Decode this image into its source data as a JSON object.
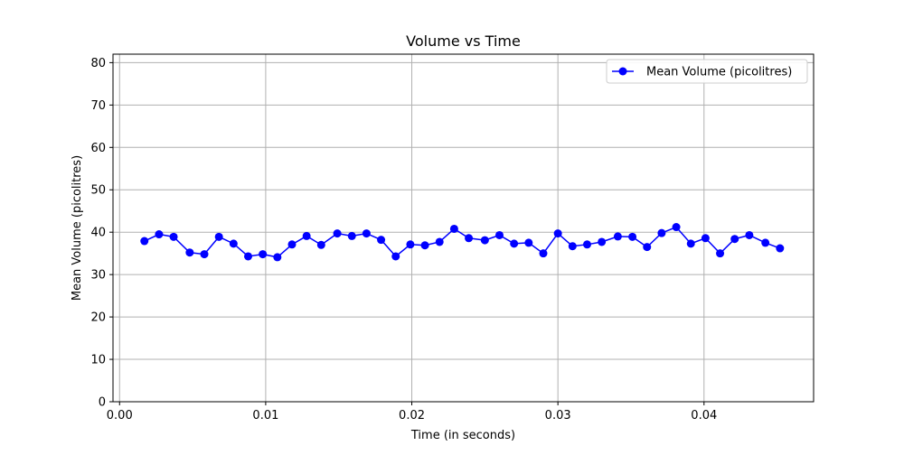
{
  "chart_data": {
    "type": "line",
    "title": "Volume vs Time",
    "xlabel": "Time (in seconds)",
    "ylabel": "Mean Volume (picolitres)",
    "xlim": [
      -0.00045,
      0.0475
    ],
    "ylim": [
      0,
      82
    ],
    "xticks": [
      0.0,
      0.01,
      0.02,
      0.03,
      0.04
    ],
    "xtick_labels": [
      "0.00",
      "0.01",
      "0.02",
      "0.03",
      "0.04"
    ],
    "yticks": [
      0,
      10,
      20,
      30,
      40,
      50,
      60,
      70,
      80
    ],
    "ytick_labels": [
      "0",
      "10",
      "20",
      "30",
      "40",
      "50",
      "60",
      "70",
      "80"
    ],
    "grid": true,
    "legend_position": "top-right",
    "series": [
      {
        "name": "Mean Volume (picolitres)",
        "color": "#0000ff",
        "marker": "circle",
        "x": [
          0.0017,
          0.0027,
          0.0037,
          0.0048,
          0.0058,
          0.0068,
          0.0078,
          0.0088,
          0.0098,
          0.0108,
          0.0118,
          0.0128,
          0.0138,
          0.0149,
          0.0159,
          0.0169,
          0.0179,
          0.0189,
          0.0199,
          0.0209,
          0.0219,
          0.0229,
          0.0239,
          0.025,
          0.026,
          0.027,
          0.028,
          0.029,
          0.03,
          0.031,
          0.032,
          0.033,
          0.0341,
          0.0351,
          0.0361,
          0.0371,
          0.0381,
          0.0391,
          0.0401,
          0.0411,
          0.0421,
          0.0431,
          0.0442,
          0.0452
        ],
        "y": [
          37.9,
          39.5,
          38.9,
          35.2,
          34.8,
          38.9,
          37.3,
          34.3,
          34.8,
          34.1,
          37.1,
          39.1,
          37.0,
          39.7,
          39.1,
          39.7,
          38.2,
          34.3,
          37.1,
          36.9,
          37.7,
          40.8,
          38.6,
          38.1,
          39.3,
          37.3,
          37.5,
          35.0,
          39.7,
          36.7,
          37.1,
          37.7,
          39.0,
          38.9,
          36.5,
          39.8,
          41.2,
          37.3,
          38.6,
          35.0,
          38.4,
          39.3,
          37.5,
          36.2
        ]
      }
    ]
  }
}
